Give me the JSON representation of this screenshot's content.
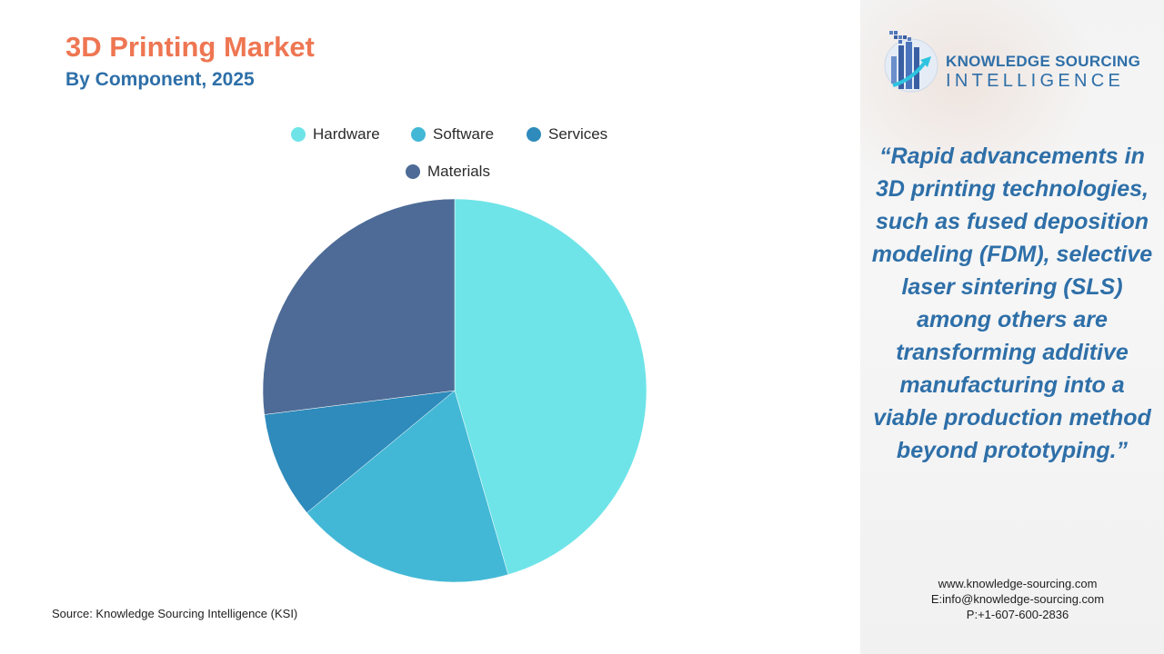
{
  "header": {
    "title": "3D Printing Market",
    "subtitle": "By Component, 2025"
  },
  "chart_data": {
    "type": "pie",
    "title": "3D Printing Market",
    "subtitle": "By Component, 2025",
    "categories": [
      "Hardware",
      "Software",
      "Services",
      "Materials"
    ],
    "values": [
      45.5,
      18.5,
      9,
      27
    ],
    "colors": [
      "#6ee4e8",
      "#43b8d6",
      "#2e8bbb",
      "#4d6b96"
    ],
    "legend_position": "top"
  },
  "source": "Source: Knowledge Sourcing Intelligence (KSI)",
  "brand": {
    "line1": "KNOWLEDGE SOURCING",
    "line2": "INTELLIGENCE",
    "color": "#2e6fa8",
    "logo_icon": "building-growth-arrow-icon"
  },
  "quote": "“Rapid advancements in 3D printing technologies, such as fused deposition modeling (FDM), selective laser sintering (SLS) among others are transforming additive manufacturing into a viable production method beyond prototyping.”",
  "contact": {
    "website": "www.knowledge-sourcing.com",
    "email": "E:info@knowledge-sourcing.com",
    "phone": "P:+1-607-600-2836"
  }
}
